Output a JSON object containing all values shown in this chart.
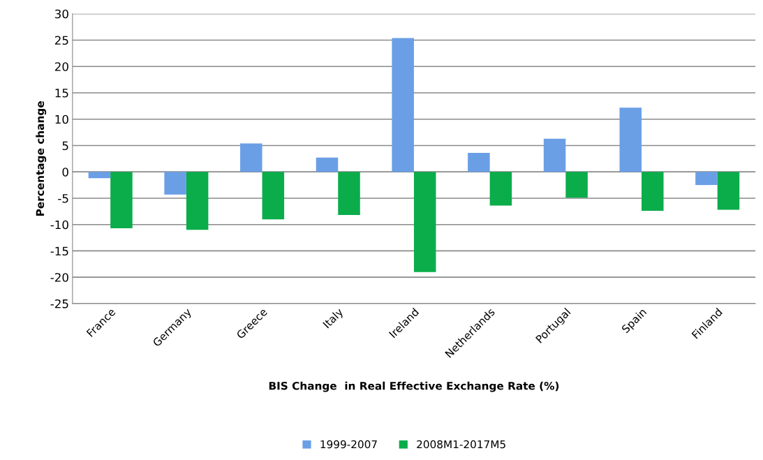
{
  "chart_data": {
    "type": "bar",
    "xlabel": "BIS Change  in Real Effective Exchange Rate (%)",
    "ylabel": "Percentage change",
    "categories": [
      "France",
      "Germany",
      "Greece",
      "Italy",
      "Ireland",
      "Netherlands",
      "Portugal",
      "Spain",
      "Finland"
    ],
    "series": [
      {
        "name": "1999-2007",
        "color": "#6a9fe6",
        "values": [
          -1.2,
          -4.3,
          5.4,
          2.7,
          25.4,
          3.6,
          6.3,
          12.2,
          -2.5
        ]
      },
      {
        "name": "2008M1-2017M5",
        "color": "#0aad4a",
        "values": [
          -10.7,
          -11,
          -9,
          -8.2,
          -19,
          -6.4,
          -4.9,
          -7.4,
          -7.2
        ]
      }
    ],
    "ylim": [
      -25,
      30
    ],
    "yticks": [
      -25,
      -20,
      -15,
      -10,
      -5,
      0,
      5,
      10,
      15,
      20,
      25,
      30
    ],
    "grid": "y",
    "legend": "bottom"
  }
}
